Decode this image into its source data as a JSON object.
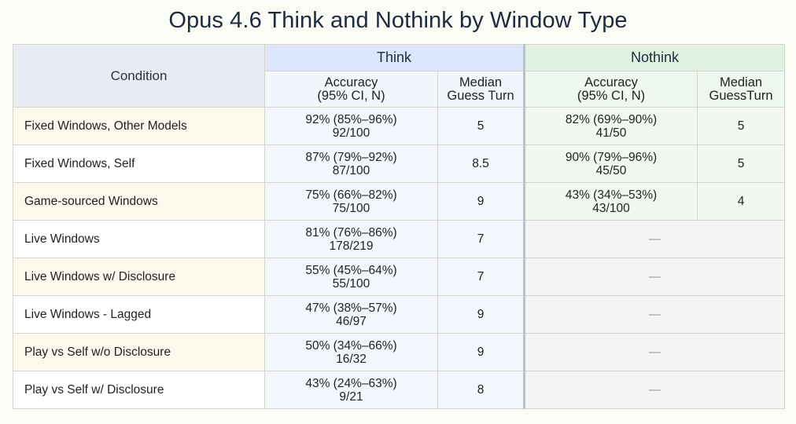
{
  "chart_data": {
    "type": "table",
    "title": "Opus 4.6 Think and Nothink by Window Type",
    "header": {
      "condition": "Condition",
      "groups": [
        "Think",
        "Nothink"
      ],
      "think_columns": [
        "Accuracy\n(95% CI, N)",
        "Median\nGuess Turn"
      ],
      "nothink_columns": [
        "Accuracy\n(95% CI, N)",
        "Median\nGuessTurn"
      ]
    },
    "rows": [
      {
        "condition": "Fixed Windows, Other Models",
        "think": {
          "accuracy": "92% (85%–96%)",
          "n": "92/100",
          "median_turn": "5"
        },
        "nothink": {
          "accuracy": "82% (69%–90%)",
          "n": "41/50",
          "median_turn": "5"
        }
      },
      {
        "condition": "Fixed Windows, Self",
        "think": {
          "accuracy": "87% (79%–92%)",
          "n": "87/100",
          "median_turn": "8.5"
        },
        "nothink": {
          "accuracy": "90% (79%–96%)",
          "n": "45/50",
          "median_turn": "5"
        }
      },
      {
        "condition": "Game-sourced Windows",
        "think": {
          "accuracy": "75% (66%–82%)",
          "n": "75/100",
          "median_turn": "9"
        },
        "nothink": {
          "accuracy": "43% (34%–53%)",
          "n": "43/100",
          "median_turn": "4"
        }
      },
      {
        "condition": "Live Windows",
        "think": {
          "accuracy": "81% (76%–86%)",
          "n": "178/219",
          "median_turn": "7"
        },
        "nothink": null
      },
      {
        "condition": "Live Windows w/ Disclosure",
        "think": {
          "accuracy": "55% (45%–64%)",
          "n": "55/100",
          "median_turn": "7"
        },
        "nothink": null
      },
      {
        "condition": "Live Windows - Lagged",
        "think": {
          "accuracy": "47% (38%–57%)",
          "n": "46/97",
          "median_turn": "9"
        },
        "nothink": null
      },
      {
        "condition": "Play vs Self w/o Disclosure",
        "think": {
          "accuracy": "50% (34%–66%)",
          "n": "16/32",
          "median_turn": "9"
        },
        "nothink": null
      },
      {
        "condition": "Play vs Self w/ Disclosure",
        "think": {
          "accuracy": "43% (24%–63%)",
          "n": "9/21",
          "median_turn": "8"
        },
        "nothink": null
      }
    ],
    "empty_marker": "—"
  }
}
